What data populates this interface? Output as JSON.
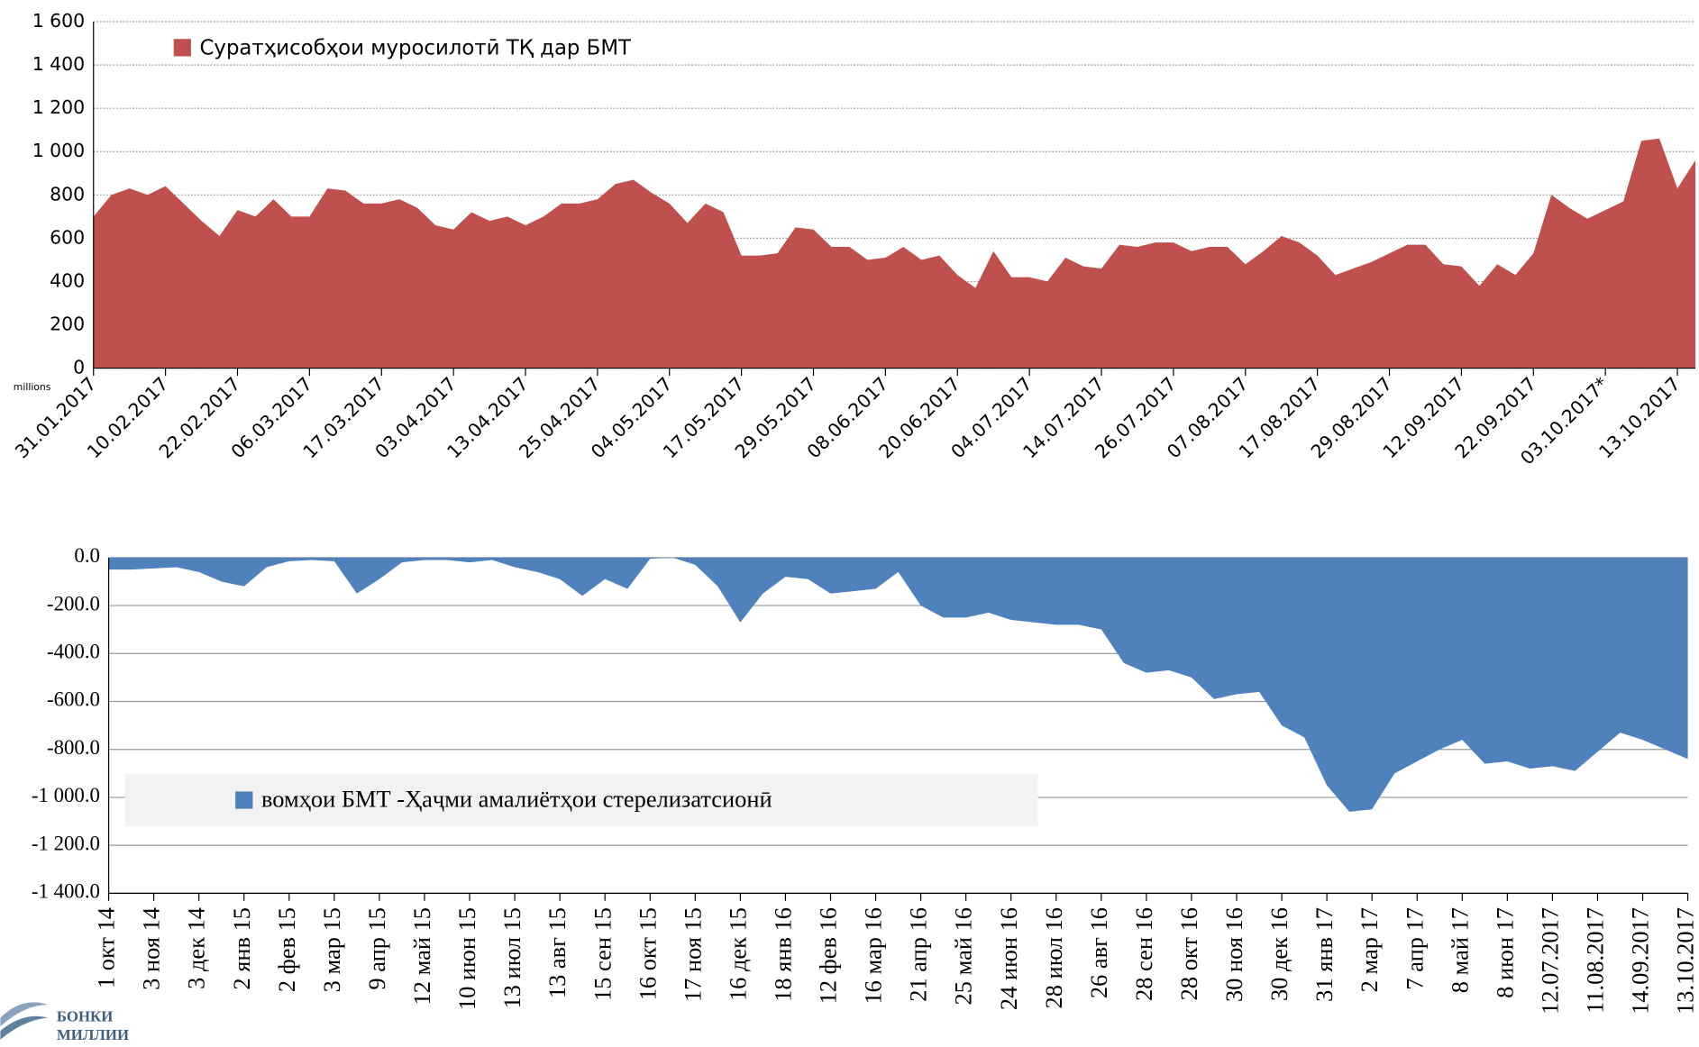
{
  "chart_data": [
    {
      "type": "area",
      "unit_label": "millions",
      "categories": [
        "31.01.2017",
        null,
        null,
        null,
        "10.02.2017",
        null,
        null,
        null,
        "22.02.2017",
        null,
        null,
        null,
        "06.03.2017",
        null,
        null,
        null,
        "17.03.2017",
        null,
        null,
        null,
        "03.04.2017",
        null,
        null,
        null,
        "13.04.2017",
        null,
        null,
        null,
        "25.04.2017",
        null,
        null,
        null,
        "04.05.2017",
        null,
        null,
        null,
        "17.05.2017",
        null,
        null,
        null,
        "29.05.2017",
        null,
        null,
        null,
        "08.06.2017",
        null,
        null,
        null,
        "20.06.2017",
        null,
        null,
        null,
        "04.07.2017",
        null,
        null,
        null,
        "14.07.2017",
        null,
        null,
        null,
        "26.07.2017",
        null,
        null,
        null,
        "07.08.2017",
        null,
        null,
        null,
        "17.08.2017",
        null,
        null,
        null,
        "29.08.2017",
        null,
        null,
        null,
        "12.09.2017",
        null,
        null,
        null,
        "22.09.2017",
        null,
        null,
        null,
        "03.10.2017*",
        null,
        null,
        null,
        "13.10.2017",
        null
      ],
      "series": [
        {
          "name": "Суратҳисобҳои муросилотӣ ТҚ дар БМТ",
          "color": "#c0504d",
          "values": [
            700,
            800,
            830,
            800,
            840,
            760,
            680,
            610,
            730,
            700,
            780,
            700,
            700,
            830,
            820,
            760,
            760,
            780,
            740,
            660,
            640,
            720,
            680,
            700,
            660,
            700,
            760,
            760,
            780,
            850,
            870,
            810,
            760,
            670,
            760,
            720,
            520,
            520,
            530,
            650,
            640,
            560,
            560,
            500,
            510,
            560,
            500,
            520,
            430,
            370,
            540,
            420,
            420,
            400,
            510,
            470,
            460,
            570,
            560,
            580,
            580,
            540,
            560,
            560,
            480,
            540,
            610,
            580,
            520,
            430,
            460,
            490,
            530,
            570,
            570,
            480,
            470,
            380,
            480,
            430,
            530,
            800,
            740,
            690,
            730,
            770,
            1050,
            1060,
            830,
            960
          ]
        }
      ],
      "ylim": [
        0,
        1600
      ],
      "yticks": [
        0,
        200,
        400,
        600,
        800,
        {
          "value": 1000,
          "label": "1 000"
        },
        {
          "value": 1200,
          "label": "1 200"
        },
        {
          "value": 1400,
          "label": "1 400"
        },
        {
          "value": 1600,
          "label": "1 600"
        }
      ],
      "grid": true,
      "legend": "top-left"
    },
    {
      "type": "area",
      "categories": [
        "1 окт 14",
        null,
        "3 ноя 14",
        null,
        "3 дек 14",
        null,
        "2 янв 15",
        null,
        "2 фев 15",
        null,
        "3 мар 15",
        null,
        "9 апр 15",
        null,
        "12 май 15",
        null,
        "10 июн 15",
        null,
        "13 июл 15",
        null,
        "13 авг 15",
        null,
        "15 сен 15",
        null,
        "16 окт 15",
        null,
        "17 ноя 15",
        null,
        "16 дек 15",
        null,
        "18 янв 16",
        null,
        "12 фев 16",
        null,
        "16 мар 16",
        null,
        "21 апр 16",
        null,
        "25 май 16",
        null,
        "24 июн 16",
        null,
        "28 июл 16",
        null,
        "26 авг 16",
        null,
        "28 сен 16",
        null,
        "28 окт 16",
        null,
        "30 ноя 16",
        null,
        "30 дек 16",
        null,
        "31 янв 17",
        null,
        "2 мар 17",
        null,
        "7 апр 17",
        null,
        "8 май 17",
        null,
        "8 июн 17",
        null,
        "12.07.2017",
        null,
        "11.08.2017",
        null,
        "14.09.2017",
        null,
        "13.10.2017"
      ],
      "series": [
        {
          "name": "вомҳои БМТ -Ҳаҷми амалиётҳои стерелизатсионӣ",
          "color": "#4f81bd",
          "values": [
            -50,
            -50,
            -45,
            -40,
            -60,
            -100,
            -120,
            -40,
            -15,
            -10,
            -15,
            -150,
            -90,
            -20,
            -10,
            -10,
            -20,
            -10,
            -40,
            -60,
            -90,
            -160,
            -90,
            -130,
            -5,
            0,
            -30,
            -120,
            -270,
            -150,
            -80,
            -90,
            -150,
            -140,
            -130,
            -60,
            -200,
            -250,
            -250,
            -230,
            -260,
            -270,
            -280,
            -280,
            -300,
            -440,
            -480,
            -470,
            -500,
            -590,
            -570,
            -560,
            -700,
            -750,
            -950,
            -1060,
            -1050,
            -900,
            -850,
            -800,
            -760,
            -860,
            -850,
            -880,
            -870,
            -890,
            -810,
            -730,
            -760,
            -800,
            -840
          ]
        }
      ],
      "ylim": [
        -1400,
        0
      ],
      "yticks": [
        {
          "value": -1400,
          "label": "-1 400.0"
        },
        {
          "value": -1200,
          "label": "-1 200.0"
        },
        {
          "value": -1000,
          "label": "-1 000.0"
        },
        {
          "value": -800,
          "label": "-800.0"
        },
        {
          "value": -600,
          "label": "-600.0"
        },
        {
          "value": -400,
          "label": "-400.0"
        },
        {
          "value": -200,
          "label": "-200.0"
        },
        {
          "value": 0,
          "label": "0.0"
        }
      ],
      "grid": true,
      "legend": "bottom-left"
    }
  ],
  "logo": {
    "line1": "БОНКИ",
    "line2": "МИЛЛИИ"
  }
}
